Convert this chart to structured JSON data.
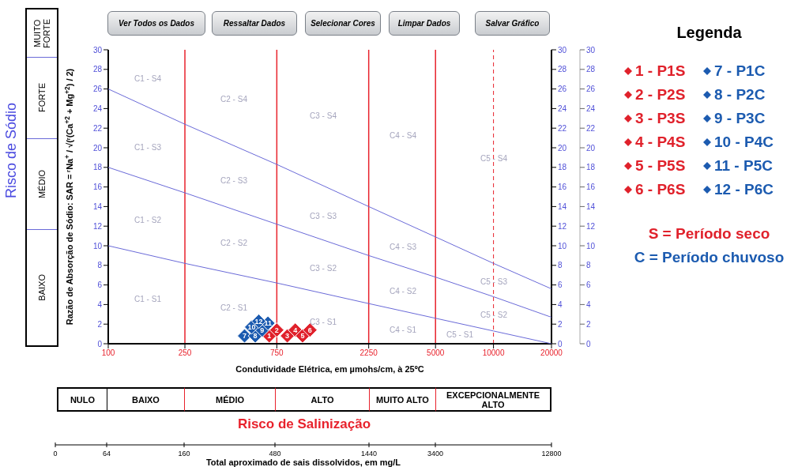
{
  "chart_data": [
    {
      "type": "scatter",
      "xlabel": "Condutividade Elétrica, em µmohs/cm, à 25ºC",
      "ylabel": "Razão de Absorção de Sódio:  SAR  =  ʳNa$^{+}$ / √(ʳ(Ca$^{+2}$ + Mg$^{+2}$) / 2)",
      "legend_title": "Legenda",
      "legend": "right",
      "marker": "diamond",
      "log": "x",
      "xlim": [
        100,
        20000
      ],
      "xticks": [
        100,
        250,
        750,
        2250,
        5000,
        10000,
        20000
      ],
      "ylim": [
        0,
        30
      ],
      "yticks": [
        0,
        2,
        4,
        6,
        8,
        10,
        12,
        14,
        16,
        18,
        20,
        22,
        24,
        26,
        28,
        30
      ],
      "y2lim": [
        0,
        30
      ],
      "y2ticks": [
        0,
        2,
        4,
        6,
        8,
        10,
        12,
        14,
        16,
        18,
        20,
        22,
        24,
        26,
        28,
        30
      ],
      "y3lim": [
        0,
        30
      ],
      "y3ticks": [
        0,
        2,
        4,
        6,
        8,
        10,
        12,
        14,
        16,
        18,
        20,
        22,
        24,
        26,
        28,
        30
      ],
      "ref_lines": [
        {
          "axis": "x",
          "value": 250,
          "color": "#e8222c"
        },
        {
          "axis": "x",
          "value": 750,
          "color": "#e8222c"
        },
        {
          "axis": "x",
          "value": 2250,
          "color": "#e8222c"
        },
        {
          "axis": "x",
          "value": 5000,
          "color": "#e8222c"
        },
        {
          "axis": "x",
          "value": 10000,
          "color": "#e8222c",
          "line_style": "dashed"
        }
      ],
      "series": [
        {
          "type": "line",
          "marker": "none",
          "color": "#6a6ad8",
          "x": [
            100,
            250,
            750,
            2250,
            5000,
            10000,
            20000
          ],
          "values": [
            26,
            22.4,
            18.3,
            14,
            10.9,
            8.2,
            5.6
          ]
        },
        {
          "type": "line",
          "marker": "none",
          "color": "#6a6ad8",
          "x": [
            100,
            250,
            750,
            2250,
            5000,
            10000,
            20000
          ],
          "values": [
            18,
            15.4,
            12.2,
            9,
            6.8,
            4.8,
            2.7
          ]
        },
        {
          "type": "line",
          "marker": "none",
          "color": "#6a6ad8",
          "x": [
            100,
            250,
            750,
            2250,
            5000,
            10000,
            20000
          ],
          "values": [
            10,
            8.2,
            6.2,
            4.1,
            2.6,
            1.3,
            0
          ]
        },
        {
          "name": "1 - P1S",
          "color": "#e0212b",
          "x": [
            685
          ],
          "values": [
            0.8
          ]
        },
        {
          "name": "2 - P2S",
          "color": "#e0212b",
          "x": [
            750
          ],
          "values": [
            1.4
          ]
        },
        {
          "name": "3 - P3S",
          "color": "#e0212b",
          "x": [
            850
          ],
          "values": [
            0.8
          ]
        },
        {
          "name": "4 - P4S",
          "color": "#e0212b",
          "x": [
            935
          ],
          "values": [
            1.4
          ]
        },
        {
          "name": "5 - P5S",
          "color": "#e0212b",
          "x": [
            1020
          ],
          "values": [
            0.8
          ]
        },
        {
          "name": "6 - P6S",
          "color": "#e0212b",
          "x": [
            1115
          ],
          "values": [
            1.4
          ]
        },
        {
          "name": "7 - P1C",
          "color": "#1c5bb0",
          "x": [
            510
          ],
          "values": [
            0.8
          ]
        },
        {
          "name": "8 - P2C",
          "color": "#1c5bb0",
          "x": [
            580
          ],
          "values": [
            0.8
          ]
        },
        {
          "name": "9 - P3C",
          "color": "#1c5bb0",
          "x": [
            630
          ],
          "values": [
            1.4
          ]
        },
        {
          "name": "10 - P4C",
          "color": "#1c5bb0",
          "x": [
            555
          ],
          "values": [
            1.7
          ]
        },
        {
          "name": "11 - P5C",
          "color": "#1c5bb0",
          "x": [
            675
          ],
          "values": [
            2.1
          ]
        },
        {
          "name": "12 - P6C",
          "color": "#1c5bb0",
          "x": [
            605
          ],
          "values": [
            2.3
          ]
        }
      ],
      "annotations": [
        "C1 - S4",
        "C1 - S3",
        "C1 - S2",
        "C1 - S1",
        "C2 - S4",
        "C2 - S3",
        "C2 - S2",
        "C2 - S1",
        "C3 - S4",
        "C3 - S3",
        "C3 - S2",
        "C3 - S1",
        "C4 - S4",
        "C4 - S3",
        "C4 - S2",
        "C4 - S1",
        "C5 - S4",
        "C5 - S3",
        "C5 - S2",
        "C5 - S1",
        "S = Período seco",
        "C = Período chuvoso",
        {
          "text": "1",
          "x": 685,
          "y": 0.8
        },
        {
          "text": "2",
          "x": 750,
          "y": 1.4
        },
        {
          "text": "3",
          "x": 850,
          "y": 0.8
        },
        {
          "text": "4",
          "x": 935,
          "y": 1.4
        },
        {
          "text": "5",
          "x": 1020,
          "y": 0.8
        },
        {
          "text": "6",
          "x": 1115,
          "y": 1.4
        },
        {
          "text": "7",
          "x": 510,
          "y": 0.8
        },
        {
          "text": "8",
          "x": 580,
          "y": 0.8
        },
        {
          "text": "9",
          "x": 630,
          "y": 1.4
        },
        {
          "text": "10",
          "x": 555,
          "y": 1.7
        },
        {
          "text": "11",
          "x": 675,
          "y": 2.1
        },
        {
          "text": "12",
          "x": 605,
          "y": 2.3
        }
      ]
    },
    {
      "type": "other",
      "title": "Risco de Sódio",
      "annotations": [
        "BAIXO",
        "MÉDIO",
        "FORTE",
        "MUITO FORTE"
      ]
    },
    {
      "type": "other",
      "title": "Risco de Salinização",
      "annotations": [
        "NULO",
        "BAIXO",
        "MÉDIO",
        "ALTO",
        "MUITO ALTO",
        "EXCEPCIONALMENTE ALTO"
      ]
    },
    {
      "type": "other",
      "annotations": [
        "Ver Todos os Dados",
        "Ressaltar Dados",
        "Selecionar Cores",
        "Limpar Dados",
        "Salvar Gráfico"
      ]
    },
    {
      "type": "other",
      "xlabel": "Total aproximado de sais dissolvidos, em mg/L",
      "annotations": [
        "0",
        "64",
        "160",
        "480",
        "1440",
        "3400",
        "12800"
      ]
    }
  ]
}
